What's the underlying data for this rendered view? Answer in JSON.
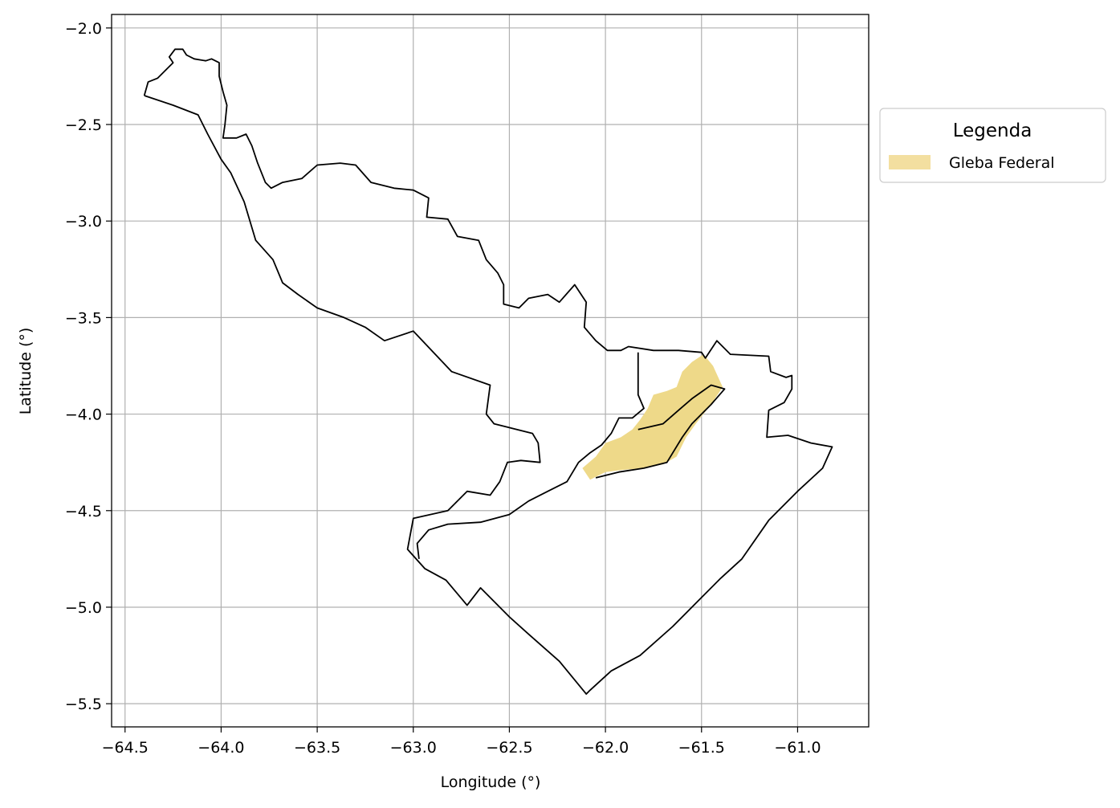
{
  "chart_data": {
    "type": "map",
    "xlabel": "Longitude (°)",
    "ylabel": "Latitude (°)",
    "xlim": [
      -64.57,
      -60.63
    ],
    "ylim": [
      -5.62,
      -1.93
    ],
    "xticks": [
      -64.5,
      -64.0,
      -63.5,
      -63.0,
      -62.5,
      -62.0,
      -61.5,
      -61.0
    ],
    "yticks": [
      -2.0,
      -2.5,
      -3.0,
      -3.5,
      -4.0,
      -4.5,
      -5.0,
      -5.5
    ],
    "xtick_labels": [
      "−64.5",
      "−64.0",
      "−63.5",
      "−63.0",
      "−62.5",
      "−62.0",
      "−61.5",
      "−61.0"
    ],
    "ytick_labels": [
      "−2.0",
      "−2.5",
      "−3.0",
      "−3.5",
      "−4.0",
      "−4.5",
      "−5.0",
      "−5.5"
    ],
    "grid": true,
    "legend": {
      "title": "Legenda",
      "placement": "outside-right-top",
      "entries": [
        {
          "label": "Gleba Federal",
          "color": "#f3dfa0"
        }
      ]
    },
    "layers": [
      {
        "name": "municipality-boundary",
        "kind": "outline",
        "stroke": "#000000",
        "coords": [
          [
            -64.4,
            -2.35
          ],
          [
            -64.38,
            -2.28
          ],
          [
            -64.33,
            -2.26
          ],
          [
            -64.28,
            -2.21
          ],
          [
            -64.25,
            -2.18
          ],
          [
            -64.27,
            -2.15
          ],
          [
            -64.24,
            -2.11
          ],
          [
            -64.2,
            -2.11
          ],
          [
            -64.18,
            -2.14
          ],
          [
            -64.14,
            -2.16
          ],
          [
            -64.08,
            -2.17
          ],
          [
            -64.05,
            -2.16
          ],
          [
            -64.01,
            -2.18
          ],
          [
            -64.01,
            -2.25
          ],
          [
            -63.99,
            -2.33
          ],
          [
            -63.97,
            -2.4
          ],
          [
            -63.98,
            -2.5
          ],
          [
            -63.99,
            -2.57
          ],
          [
            -63.92,
            -2.57
          ],
          [
            -63.87,
            -2.55
          ],
          [
            -63.84,
            -2.61
          ],
          [
            -63.81,
            -2.7
          ],
          [
            -63.77,
            -2.8
          ],
          [
            -63.74,
            -2.83
          ],
          [
            -63.68,
            -2.8
          ],
          [
            -63.58,
            -2.78
          ],
          [
            -63.5,
            -2.71
          ],
          [
            -63.38,
            -2.7
          ],
          [
            -63.3,
            -2.71
          ],
          [
            -63.22,
            -2.8
          ],
          [
            -63.1,
            -2.83
          ],
          [
            -63.0,
            -2.84
          ],
          [
            -62.92,
            -2.88
          ],
          [
            -62.93,
            -2.98
          ],
          [
            -62.82,
            -2.99
          ],
          [
            -62.77,
            -3.08
          ],
          [
            -62.66,
            -3.1
          ],
          [
            -62.62,
            -3.2
          ],
          [
            -62.56,
            -3.27
          ],
          [
            -62.53,
            -3.33
          ],
          [
            -62.53,
            -3.43
          ],
          [
            -62.45,
            -3.45
          ],
          [
            -62.4,
            -3.4
          ],
          [
            -62.3,
            -3.38
          ],
          [
            -62.24,
            -3.42
          ],
          [
            -62.16,
            -3.33
          ],
          [
            -62.1,
            -3.42
          ],
          [
            -62.11,
            -3.55
          ],
          [
            -62.05,
            -3.62
          ],
          [
            -61.99,
            -3.67
          ],
          [
            -61.92,
            -3.67
          ],
          [
            -61.88,
            -3.65
          ],
          [
            -61.75,
            -3.67
          ],
          [
            -61.62,
            -3.67
          ],
          [
            -61.5,
            -3.68
          ],
          [
            -61.48,
            -3.71
          ],
          [
            -61.42,
            -3.62
          ],
          [
            -61.35,
            -3.69
          ],
          [
            -61.15,
            -3.7
          ],
          [
            -61.14,
            -3.78
          ],
          [
            -61.06,
            -3.81
          ],
          [
            -61.03,
            -3.8
          ],
          [
            -61.03,
            -3.87
          ],
          [
            -61.07,
            -3.94
          ],
          [
            -61.15,
            -3.98
          ],
          [
            -61.16,
            -4.12
          ],
          [
            -61.05,
            -4.11
          ],
          [
            -60.93,
            -4.15
          ],
          [
            -60.82,
            -4.17
          ],
          [
            -60.87,
            -4.28
          ],
          [
            -61.0,
            -4.4
          ],
          [
            -61.15,
            -4.55
          ],
          [
            -61.29,
            -4.75
          ],
          [
            -61.4,
            -4.85
          ],
          [
            -61.5,
            -4.95
          ],
          [
            -61.65,
            -5.1
          ],
          [
            -61.82,
            -5.25
          ],
          [
            -61.97,
            -5.33
          ],
          [
            -62.08,
            -5.43
          ],
          [
            -62.1,
            -5.45
          ],
          [
            -62.24,
            -5.28
          ],
          [
            -62.4,
            -5.14
          ],
          [
            -62.5,
            -5.05
          ],
          [
            -62.65,
            -4.9
          ],
          [
            -62.72,
            -4.99
          ],
          [
            -62.83,
            -4.86
          ],
          [
            -62.94,
            -4.8
          ],
          [
            -63.03,
            -4.7
          ],
          [
            -63.0,
            -4.54
          ],
          [
            -62.82,
            -4.5
          ],
          [
            -62.72,
            -4.4
          ],
          [
            -62.6,
            -4.42
          ],
          [
            -62.55,
            -4.35
          ],
          [
            -62.51,
            -4.25
          ],
          [
            -62.44,
            -4.24
          ],
          [
            -62.34,
            -4.25
          ],
          [
            -62.35,
            -4.15
          ],
          [
            -62.38,
            -4.1
          ],
          [
            -62.5,
            -4.07
          ],
          [
            -62.58,
            -4.05
          ],
          [
            -62.62,
            -4.0
          ],
          [
            -62.6,
            -3.85
          ],
          [
            -62.8,
            -3.78
          ],
          [
            -63.0,
            -3.57
          ],
          [
            -63.15,
            -3.62
          ],
          [
            -63.25,
            -3.55
          ],
          [
            -63.36,
            -3.5
          ],
          [
            -63.5,
            -3.45
          ],
          [
            -63.6,
            -3.38
          ],
          [
            -63.68,
            -3.32
          ],
          [
            -63.73,
            -3.2
          ],
          [
            -63.82,
            -3.1
          ],
          [
            -63.88,
            -2.9
          ],
          [
            -63.95,
            -2.75
          ],
          [
            -64.0,
            -2.68
          ],
          [
            -64.07,
            -2.55
          ],
          [
            -64.12,
            -2.45
          ],
          [
            -64.25,
            -2.4
          ],
          [
            -64.4,
            -2.35
          ]
        ]
      },
      {
        "name": "inner-boundary-west",
        "kind": "outline",
        "stroke": "#000000",
        "coords": [
          [
            -61.83,
            -3.68
          ],
          [
            -61.83,
            -3.9
          ],
          [
            -61.8,
            -3.97
          ],
          [
            -61.86,
            -4.02
          ],
          [
            -61.93,
            -4.02
          ],
          [
            -61.97,
            -4.1
          ],
          [
            -62.02,
            -4.16
          ],
          [
            -62.08,
            -4.2
          ],
          [
            -62.14,
            -4.25
          ],
          [
            -62.2,
            -4.35
          ],
          [
            -62.3,
            -4.4
          ],
          [
            -62.4,
            -4.45
          ],
          [
            -62.5,
            -4.52
          ],
          [
            -62.65,
            -4.56
          ],
          [
            -62.82,
            -4.57
          ],
          [
            -62.92,
            -4.6
          ],
          [
            -62.98,
            -4.67
          ],
          [
            -62.97,
            -4.75
          ]
        ]
      },
      {
        "name": "inner-boundary-east",
        "kind": "outline",
        "stroke": "#000000",
        "coords": [
          [
            -61.83,
            -4.08
          ],
          [
            -61.7,
            -4.05
          ],
          [
            -61.62,
            -3.98
          ],
          [
            -61.55,
            -3.92
          ],
          [
            -61.45,
            -3.85
          ],
          [
            -61.38,
            -3.87
          ],
          [
            -61.45,
            -3.95
          ],
          [
            -61.55,
            -4.05
          ],
          [
            -61.6,
            -4.12
          ],
          [
            -61.68,
            -4.25
          ],
          [
            -61.8,
            -4.28
          ],
          [
            -61.93,
            -4.3
          ],
          [
            -62.05,
            -4.33
          ]
        ]
      },
      {
        "name": "gleba-federal",
        "kind": "fill",
        "fill": "#eed989",
        "coords": [
          [
            -62.12,
            -4.28
          ],
          [
            -62.05,
            -4.22
          ],
          [
            -62.0,
            -4.15
          ],
          [
            -61.92,
            -4.12
          ],
          [
            -61.86,
            -4.08
          ],
          [
            -61.82,
            -4.03
          ],
          [
            -61.78,
            -3.97
          ],
          [
            -61.75,
            -3.9
          ],
          [
            -61.68,
            -3.88
          ],
          [
            -61.63,
            -3.86
          ],
          [
            -61.6,
            -3.78
          ],
          [
            -61.55,
            -3.73
          ],
          [
            -61.49,
            -3.69
          ],
          [
            -61.44,
            -3.75
          ],
          [
            -61.39,
            -3.86
          ],
          [
            -61.45,
            -3.95
          ],
          [
            -61.53,
            -4.05
          ],
          [
            -61.58,
            -4.12
          ],
          [
            -61.63,
            -4.22
          ],
          [
            -61.7,
            -4.26
          ],
          [
            -61.8,
            -4.28
          ],
          [
            -61.92,
            -4.29
          ],
          [
            -62.0,
            -4.3
          ],
          [
            -62.08,
            -4.34
          ],
          [
            -62.12,
            -4.28
          ]
        ]
      }
    ]
  }
}
